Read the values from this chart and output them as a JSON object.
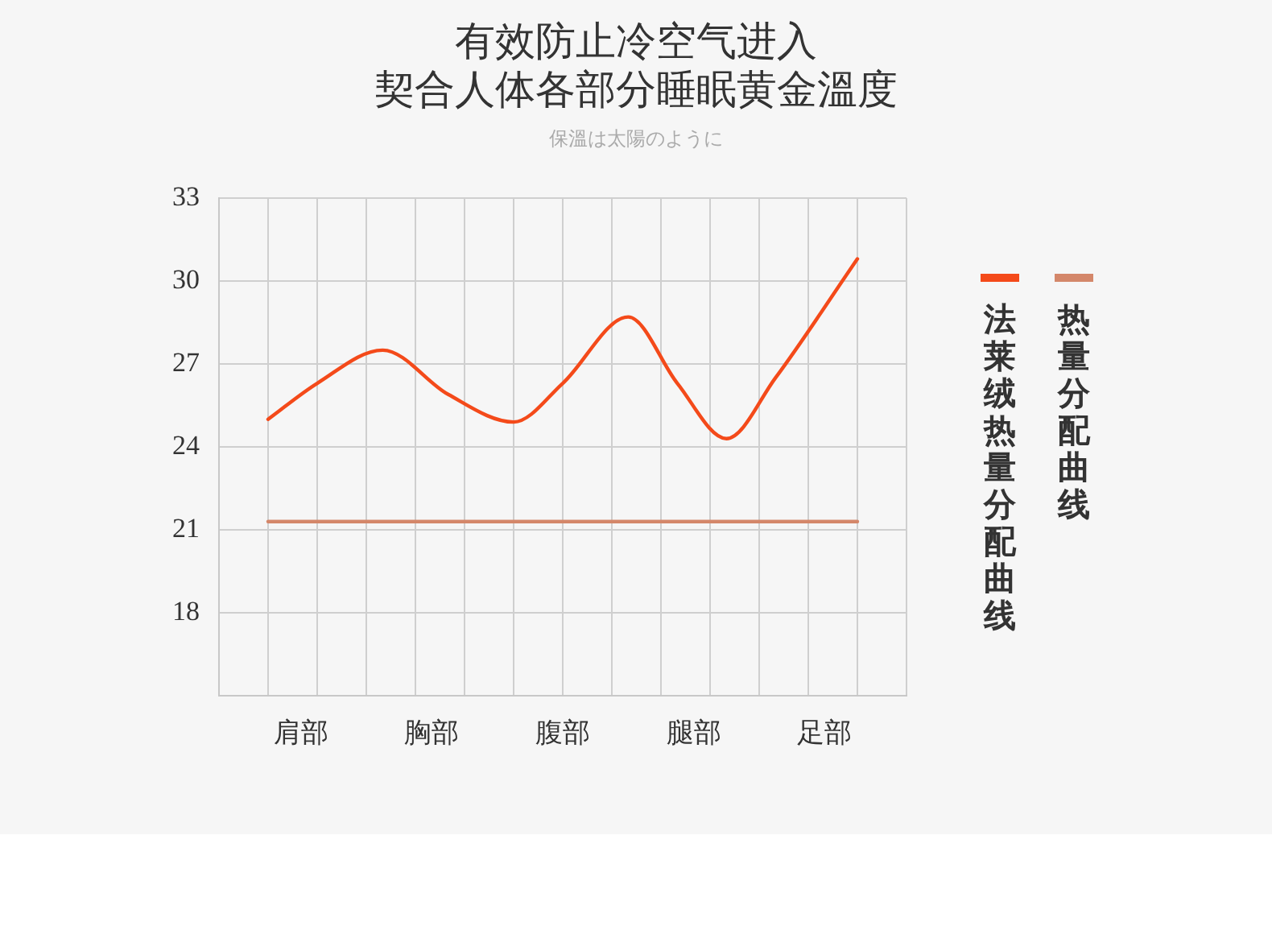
{
  "chart_data": {
    "type": "line",
    "title": "有效防止冷空气进入",
    "subtitle": "契合人体各部分睡眠黄金溫度",
    "annotations": [
      "保溫は太陽のように"
    ],
    "categories": [
      null,
      null,
      null,
      null,
      null,
      "肩部",
      null,
      null,
      null,
      null,
      null,
      null,
      null,
      "胸部",
      null,
      null,
      null,
      null,
      null,
      null,
      null,
      "腹部",
      null,
      null,
      null,
      null,
      null,
      null,
      null,
      "腿部",
      null,
      null,
      null,
      null,
      null,
      null,
      null,
      "足部",
      null,
      null,
      null,
      null,
      null
    ],
    "ylim": [
      15,
      33
    ],
    "yticks": [
      18,
      21,
      24,
      27,
      30,
      33
    ],
    "grid": true,
    "legend": "right",
    "marker": "none",
    "line_style": "solid",
    "series": [
      {
        "name": "法莱绒热量分配曲线",
        "color": "#f44a1a",
        "values": [
          null,
          null,
          null,
          25.0,
          null,
          null,
          26.3,
          null,
          null,
          null,
          27.5,
          null,
          null,
          null,
          25.9,
          null,
          null,
          null,
          24.9,
          null,
          null,
          26.3,
          null,
          null,
          null,
          28.7,
          null,
          null,
          26.3,
          null,
          null,
          24.3,
          null,
          null,
          26.5,
          null,
          null,
          null,
          null,
          30.8,
          null,
          null,
          null
        ]
      },
      {
        "name": "热量分配曲线",
        "color": "#d4876a",
        "values": [
          null,
          null,
          null,
          21.3,
          null,
          null,
          null,
          null,
          null,
          null,
          null,
          null,
          null,
          null,
          null,
          null,
          null,
          null,
          null,
          null,
          null,
          null,
          null,
          null,
          null,
          null,
          null,
          null,
          null,
          null,
          null,
          null,
          null,
          null,
          null,
          null,
          null,
          null,
          null,
          21.3,
          null,
          null,
          null
        ]
      }
    ]
  }
}
